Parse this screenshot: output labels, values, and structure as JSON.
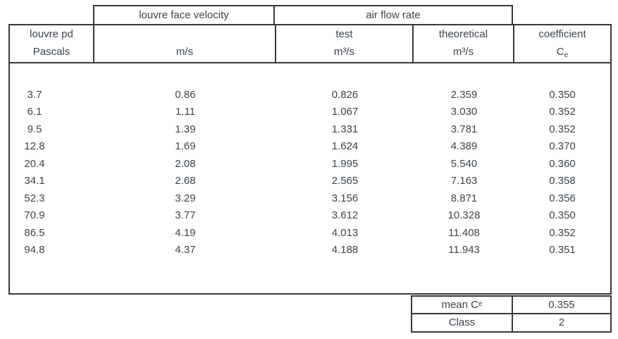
{
  "colors": {
    "border": "#333a40",
    "text": "#3b444c",
    "background": "#ffffff"
  },
  "group_headers": {
    "velocity": "louvre face velocity",
    "airflow": "air flow rate"
  },
  "columns": {
    "pd": {
      "line1": "louvre pd",
      "line2": "Pascals"
    },
    "velocity": {
      "line1": "",
      "line2": "m/s"
    },
    "test": {
      "line1": "test",
      "line2": "m³/s"
    },
    "theoretical": {
      "line1": "theoretical",
      "line2": "m³/s"
    },
    "coefficient": {
      "line1": "coefficient",
      "symbol": "C",
      "subscript": "e"
    }
  },
  "rows": [
    [
      "3.7",
      "0.86",
      "0.826",
      "2.359",
      "0.350"
    ],
    [
      "6.1",
      "1.11",
      "1.067",
      "3.030",
      "0.352"
    ],
    [
      "9.5",
      "1.39",
      "1.331",
      "3.781",
      "0.352"
    ],
    [
      "12.8",
      "1.69",
      "1.624",
      "4.389",
      "0.370"
    ],
    [
      "20.4",
      "2.08",
      "1.995",
      "5.540",
      "0.360"
    ],
    [
      "34.1",
      "2.68",
      "2.565",
      "7.163",
      "0.358"
    ],
    [
      "52.3",
      "3.29",
      "3.156",
      "8.871",
      "0.356"
    ],
    [
      "70.9",
      "3.77",
      "3.612",
      "10.328",
      "0.350"
    ],
    [
      "86.5",
      "4.19",
      "4.013",
      "11.408",
      "0.352"
    ],
    [
      "94.8",
      "4.37",
      "4.188",
      "11.943",
      "0.351"
    ]
  ],
  "summary": {
    "mean_label": {
      "text": "mean C",
      "subscript": "e"
    },
    "mean_value": "0.355",
    "class_label": "Class",
    "class_value": "2"
  }
}
